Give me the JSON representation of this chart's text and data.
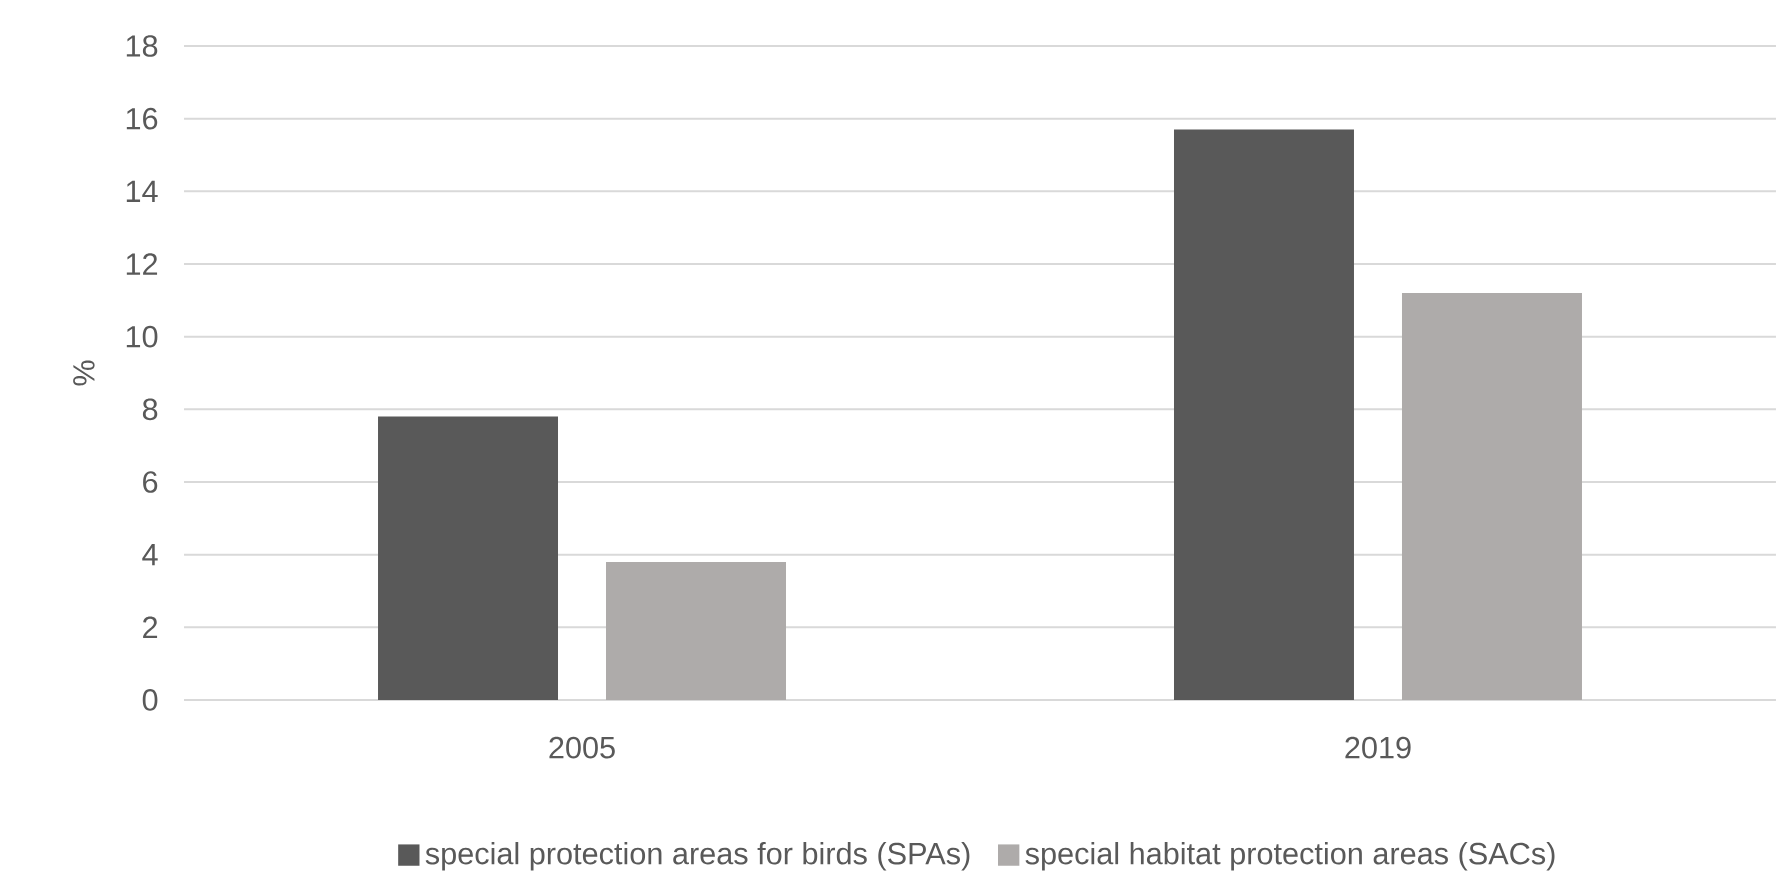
{
  "chart_data": {
    "type": "bar",
    "ylabel": "%",
    "categories": [
      "2005",
      "2019"
    ],
    "series": [
      {
        "name": "special protection areas for birds (SPAs)",
        "color": "#595959",
        "values": [
          7.8,
          15.7
        ]
      },
      {
        "name": "special habitat protection areas (SACs)",
        "color": "#aeabaa",
        "values": [
          3.8,
          11.2
        ]
      }
    ],
    "ylim": [
      0,
      18
    ],
    "yticks": [
      0,
      2,
      4,
      6,
      8,
      10,
      12,
      14,
      16,
      18
    ],
    "grid": "y",
    "legend": "bottom"
  }
}
